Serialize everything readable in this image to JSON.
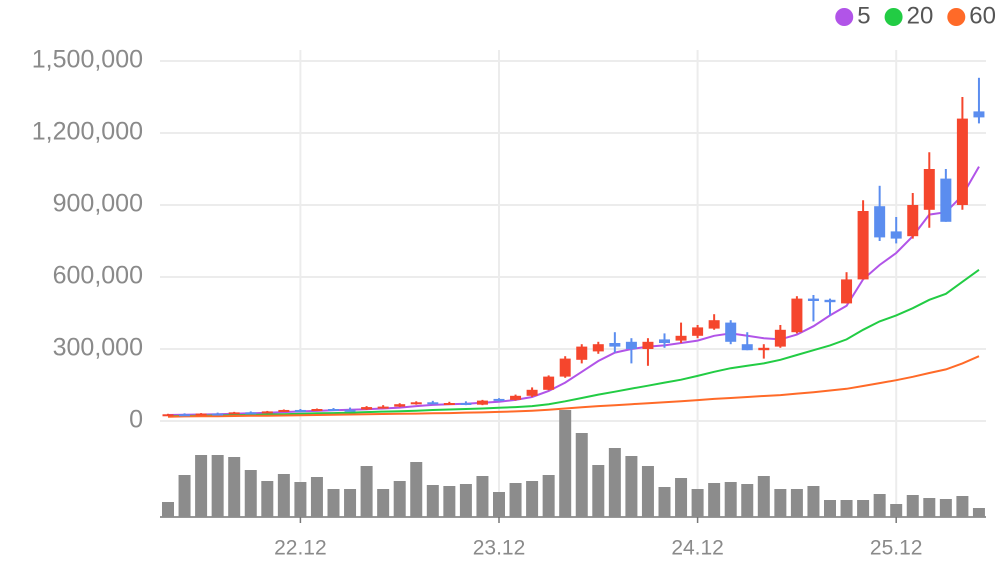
{
  "chart_data": {
    "type": "candlestick",
    "categories": [
      null,
      null,
      null,
      null,
      null,
      null,
      null,
      null,
      "22.12",
      null,
      null,
      null,
      null,
      null,
      null,
      null,
      null,
      null,
      null,
      null,
      "23.12",
      null,
      null,
      null,
      null,
      null,
      null,
      null,
      null,
      null,
      null,
      null,
      "24.12",
      null,
      null,
      null,
      null,
      null,
      null,
      null,
      null,
      null,
      null,
      null,
      "25.12",
      null,
      null,
      null,
      null,
      null
    ],
    "open": [
      25000,
      28000,
      27000,
      31000,
      30000,
      36000,
      34000,
      40000,
      46000,
      44000,
      50000,
      47000,
      48000,
      58000,
      60000,
      70000,
      78000,
      72000,
      75000,
      68000,
      92000,
      88000,
      105000,
      130000,
      185000,
      255000,
      290000,
      325000,
      330000,
      300000,
      340000,
      335000,
      355000,
      385000,
      410000,
      320000,
      295000,
      310000,
      370000,
      510000,
      505000,
      490000,
      590000,
      895000,
      790000,
      770000,
      880000,
      1010000,
      900000,
      1290000
    ],
    "high": [
      30000,
      32000,
      33000,
      35000,
      38000,
      40000,
      42000,
      48000,
      50000,
      52000,
      54000,
      56000,
      62000,
      66000,
      74000,
      82000,
      84000,
      80000,
      82000,
      88000,
      95000,
      110000,
      140000,
      190000,
      270000,
      320000,
      330000,
      370000,
      345000,
      345000,
      365000,
      410000,
      400000,
      445000,
      420000,
      370000,
      320000,
      400000,
      520000,
      525000,
      510000,
      620000,
      920000,
      980000,
      850000,
      950000,
      1120000,
      1050000,
      1350000,
      1430000
    ],
    "low": [
      22000,
      25000,
      26000,
      29000,
      29000,
      33000,
      32000,
      38000,
      42000,
      43000,
      45000,
      45000,
      46000,
      55000,
      58000,
      68000,
      70000,
      68000,
      66000,
      66000,
      82000,
      85000,
      100000,
      128000,
      180000,
      240000,
      280000,
      285000,
      240000,
      230000,
      305000,
      325000,
      345000,
      380000,
      320000,
      295000,
      260000,
      305000,
      365000,
      415000,
      440000,
      490000,
      590000,
      750000,
      740000,
      760000,
      805000,
      830000,
      880000,
      1240000
    ],
    "close": [
      28000,
      27000,
      31000,
      30000,
      36000,
      34000,
      40000,
      46000,
      44000,
      50000,
      47000,
      46000,
      58000,
      60000,
      70000,
      78000,
      72000,
      75000,
      68000,
      85000,
      86000,
      105000,
      130000,
      185000,
      260000,
      310000,
      320000,
      310000,
      300000,
      330000,
      325000,
      355000,
      390000,
      420000,
      330000,
      295000,
      305000,
      380000,
      510000,
      500000,
      495000,
      590000,
      875000,
      765000,
      760000,
      900000,
      1050000,
      830000,
      1260000,
      1265000
    ],
    "volume": [
      15,
      42,
      62,
      62,
      60,
      47,
      36,
      43,
      35,
      40,
      28,
      28,
      51,
      28,
      36,
      55,
      32,
      31,
      33,
      41,
      25,
      34,
      36,
      42,
      107,
      84,
      52,
      69,
      61,
      51,
      30,
      39,
      28,
      34,
      35,
      33,
      41,
      28,
      28,
      31,
      17,
      17,
      17,
      23,
      13,
      22,
      19,
      18,
      21,
      9
    ],
    "up_color": "#f5462d",
    "down_color": "#5b8def",
    "volume_color": "#8c8c8c",
    "series": [
      {
        "name": "5",
        "color": "#b154e8",
        "values": [
          25000,
          26000,
          27000,
          28000,
          30000,
          32000,
          34000,
          37000,
          40000,
          42000,
          45000,
          47000,
          49000,
          52000,
          56000,
          62000,
          67000,
          70000,
          72000,
          76000,
          80000,
          88000,
          100000,
          125000,
          160000,
          205000,
          250000,
          285000,
          300000,
          310000,
          315000,
          325000,
          335000,
          355000,
          365000,
          355000,
          345000,
          340000,
          360000,
          395000,
          440000,
          480000,
          590000,
          650000,
          700000,
          770000,
          860000,
          870000,
          940000,
          1060000
        ]
      },
      {
        "name": "20",
        "color": "#22cc44",
        "values": [
          20000,
          21000,
          22000,
          23000,
          24000,
          25000,
          27000,
          28000,
          30000,
          32000,
          33000,
          35000,
          37000,
          39000,
          41000,
          43000,
          46000,
          48000,
          50000,
          52000,
          55000,
          58000,
          62000,
          70000,
          82000,
          96000,
          110000,
          122000,
          135000,
          147000,
          160000,
          172000,
          188000,
          205000,
          220000,
          230000,
          240000,
          255000,
          275000,
          295000,
          315000,
          340000,
          380000,
          415000,
          440000,
          470000,
          505000,
          530000,
          580000,
          630000
        ]
      },
      {
        "name": "60",
        "color": "#ff6a28",
        "values": [
          18000,
          19000,
          20000,
          20000,
          21000,
          22000,
          22000,
          23000,
          24000,
          25000,
          26000,
          27000,
          28000,
          29000,
          30000,
          31000,
          32000,
          33000,
          35000,
          36000,
          38000,
          40000,
          43000,
          47000,
          52000,
          57000,
          62000,
          66000,
          70000,
          74000,
          78000,
          82000,
          87000,
          92000,
          96000,
          100000,
          104000,
          108000,
          114000,
          120000,
          127000,
          134000,
          146000,
          158000,
          170000,
          184000,
          200000,
          215000,
          240000,
          270000
        ]
      }
    ],
    "ylim": [
      0,
      1500000
    ],
    "yticks": [
      0,
      {
        "value": 300000,
        "label": "300,000"
      },
      {
        "value": 600000,
        "label": "600,000"
      },
      {
        "value": 900000,
        "label": "900,000"
      },
      {
        "value": 1200000,
        "label": "1,200,000"
      },
      {
        "value": 1500000,
        "label": "1,500,000"
      }
    ],
    "grid": true
  }
}
